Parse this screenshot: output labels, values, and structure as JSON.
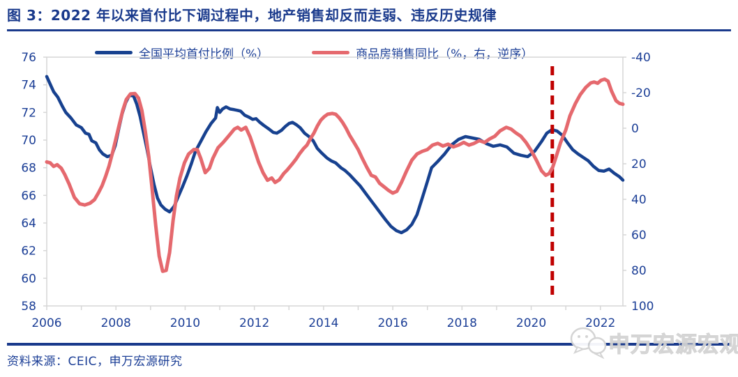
{
  "header": {
    "title": "图 3：2022 年以来首付比下调过程中，地产销售却反而走弱、违反历史规律"
  },
  "footer": {
    "source": "资料来源：CEIC，申万宏源研究",
    "watermark": "申万宏源宏观",
    "watermark_icon": "wechat-bubbles-icon"
  },
  "colors": {
    "title_navy": "#1a3a8c",
    "axis_text_blue": "#1b3e96",
    "series_downpayment_blue": "#17418f",
    "series_sales_red": "#e5696e",
    "dashed_marker_red": "#c00000",
    "plot_frame_gray": "#d6d6d6",
    "watermark_gray": "#dcdcdc"
  },
  "chart_data": {
    "type": "line",
    "title": "图 3：2022 年以来首付比下调过程中，地产销售却反而走弱、违反历史规律",
    "legend_position": "top",
    "grid": false,
    "x_axis": {
      "range": [
        2006,
        2022.65
      ],
      "minor_tick_years": [
        2006,
        2007,
        2008,
        2009,
        2010,
        2011,
        2012,
        2013,
        2014,
        2015,
        2016,
        2017,
        2018,
        2019,
        2020,
        2021,
        2022
      ],
      "tick_labels": [
        "2006",
        "2008",
        "2010",
        "2012",
        "2014",
        "2016",
        "2018",
        "2020",
        "2022"
      ],
      "tick_label_years": [
        2006,
        2008,
        2010,
        2012,
        2014,
        2016,
        2018,
        2020,
        2022
      ]
    },
    "y_left": {
      "range": [
        58,
        76
      ],
      "tick_labels": [
        "58",
        "60",
        "62",
        "64",
        "66",
        "68",
        "70",
        "72",
        "74",
        "76"
      ],
      "ticks": [
        58,
        60,
        62,
        64,
        66,
        68,
        70,
        72,
        74,
        76
      ]
    },
    "y_right": {
      "range": [
        -40,
        100
      ],
      "inverted": true,
      "tick_labels": [
        "-40",
        "-20",
        "0",
        "20",
        "40",
        "60",
        "80",
        "100"
      ],
      "ticks": [
        -40,
        -20,
        0,
        20,
        40,
        60,
        80,
        100
      ]
    },
    "annotation": {
      "type": "vline-dashed",
      "x": 2020.61,
      "color": "#c00000"
    },
    "series": [
      {
        "name": "全国平均首付比例（%）",
        "axis": "left",
        "color": "#17418f",
        "points": [
          [
            2006.0,
            74.6
          ],
          [
            2006.08,
            74.15
          ],
          [
            2006.2,
            73.5
          ],
          [
            2006.32,
            73.1
          ],
          [
            2006.45,
            72.45
          ],
          [
            2006.55,
            72.0
          ],
          [
            2006.7,
            71.6
          ],
          [
            2006.85,
            71.1
          ],
          [
            2007.0,
            70.9
          ],
          [
            2007.12,
            70.5
          ],
          [
            2007.22,
            70.42
          ],
          [
            2007.3,
            69.95
          ],
          [
            2007.42,
            69.8
          ],
          [
            2007.52,
            69.3
          ],
          [
            2007.62,
            69.0
          ],
          [
            2007.75,
            68.8
          ],
          [
            2007.88,
            68.9
          ],
          [
            2007.98,
            69.6
          ],
          [
            2008.08,
            70.8
          ],
          [
            2008.18,
            71.9
          ],
          [
            2008.28,
            72.7
          ],
          [
            2008.38,
            73.2
          ],
          [
            2008.5,
            73.25
          ],
          [
            2008.6,
            72.6
          ],
          [
            2008.7,
            71.7
          ],
          [
            2008.8,
            70.5
          ],
          [
            2008.9,
            69.3
          ],
          [
            2009.0,
            68.0
          ],
          [
            2009.1,
            66.8
          ],
          [
            2009.2,
            65.8
          ],
          [
            2009.3,
            65.3
          ],
          [
            2009.42,
            65.0
          ],
          [
            2009.55,
            64.8
          ],
          [
            2009.68,
            65.2
          ],
          [
            2009.8,
            65.9
          ],
          [
            2009.92,
            66.6
          ],
          [
            2010.05,
            67.4
          ],
          [
            2010.18,
            68.3
          ],
          [
            2010.3,
            69.2
          ],
          [
            2010.45,
            69.9
          ],
          [
            2010.6,
            70.6
          ],
          [
            2010.75,
            71.2
          ],
          [
            2010.88,
            71.6
          ],
          [
            2010.93,
            72.35
          ],
          [
            2011.0,
            72.0
          ],
          [
            2011.08,
            72.25
          ],
          [
            2011.18,
            72.4
          ],
          [
            2011.3,
            72.25
          ],
          [
            2011.42,
            72.2
          ],
          [
            2011.52,
            72.15
          ],
          [
            2011.6,
            72.1
          ],
          [
            2011.72,
            71.8
          ],
          [
            2011.85,
            71.65
          ],
          [
            2011.95,
            71.5
          ],
          [
            2012.05,
            71.55
          ],
          [
            2012.15,
            71.3
          ],
          [
            2012.28,
            71.05
          ],
          [
            2012.42,
            70.8
          ],
          [
            2012.55,
            70.55
          ],
          [
            2012.65,
            70.5
          ],
          [
            2012.78,
            70.7
          ],
          [
            2012.9,
            71.0
          ],
          [
            2013.0,
            71.2
          ],
          [
            2013.1,
            71.28
          ],
          [
            2013.22,
            71.1
          ],
          [
            2013.32,
            70.9
          ],
          [
            2013.45,
            70.5
          ],
          [
            2013.58,
            70.25
          ],
          [
            2013.7,
            69.95
          ],
          [
            2013.82,
            69.4
          ],
          [
            2013.95,
            69.05
          ],
          [
            2014.1,
            68.7
          ],
          [
            2014.22,
            68.5
          ],
          [
            2014.35,
            68.35
          ],
          [
            2014.5,
            68.0
          ],
          [
            2014.62,
            67.8
          ],
          [
            2014.75,
            67.5
          ],
          [
            2014.9,
            67.1
          ],
          [
            2015.05,
            66.7
          ],
          [
            2015.2,
            66.2
          ],
          [
            2015.35,
            65.7
          ],
          [
            2015.5,
            65.2
          ],
          [
            2015.65,
            64.7
          ],
          [
            2015.8,
            64.2
          ],
          [
            2015.95,
            63.75
          ],
          [
            2016.1,
            63.45
          ],
          [
            2016.25,
            63.3
          ],
          [
            2016.4,
            63.5
          ],
          [
            2016.55,
            63.9
          ],
          [
            2016.7,
            64.6
          ],
          [
            2016.85,
            65.8
          ],
          [
            2017.0,
            67.0
          ],
          [
            2017.12,
            68.0
          ],
          [
            2017.3,
            68.45
          ],
          [
            2017.5,
            69.0
          ],
          [
            2017.7,
            69.65
          ],
          [
            2017.9,
            70.05
          ],
          [
            2018.1,
            70.25
          ],
          [
            2018.3,
            70.15
          ],
          [
            2018.5,
            70.05
          ],
          [
            2018.7,
            69.75
          ],
          [
            2018.9,
            69.55
          ],
          [
            2019.1,
            69.65
          ],
          [
            2019.3,
            69.5
          ],
          [
            2019.5,
            69.05
          ],
          [
            2019.7,
            68.9
          ],
          [
            2019.9,
            68.8
          ],
          [
            2020.1,
            69.2
          ],
          [
            2020.3,
            69.9
          ],
          [
            2020.45,
            70.5
          ],
          [
            2020.6,
            70.75
          ],
          [
            2020.75,
            70.65
          ],
          [
            2020.9,
            70.35
          ],
          [
            2021.05,
            69.8
          ],
          [
            2021.2,
            69.3
          ],
          [
            2021.35,
            69.0
          ],
          [
            2021.5,
            68.75
          ],
          [
            2021.65,
            68.5
          ],
          [
            2021.8,
            68.1
          ],
          [
            2021.95,
            67.8
          ],
          [
            2022.1,
            67.75
          ],
          [
            2022.25,
            67.9
          ],
          [
            2022.4,
            67.6
          ],
          [
            2022.55,
            67.35
          ],
          [
            2022.65,
            67.1
          ]
        ]
      },
      {
        "name": "商品房销售同比（%，右，逆序）",
        "axis": "right",
        "color": "#e5696e",
        "points": [
          [
            2006.0,
            19.0
          ],
          [
            2006.1,
            19.5
          ],
          [
            2006.2,
            21.5
          ],
          [
            2006.3,
            20.5
          ],
          [
            2006.42,
            22.5
          ],
          [
            2006.52,
            26
          ],
          [
            2006.65,
            31.5
          ],
          [
            2006.8,
            39
          ],
          [
            2006.95,
            42.5
          ],
          [
            2007.1,
            43.2
          ],
          [
            2007.25,
            42.2
          ],
          [
            2007.38,
            40.2
          ],
          [
            2007.5,
            36.2
          ],
          [
            2007.6,
            32.3
          ],
          [
            2007.7,
            27.2
          ],
          [
            2007.8,
            21.3
          ],
          [
            2007.9,
            13.8
          ],
          [
            2008.0,
            5.9
          ],
          [
            2008.1,
            -2.4
          ],
          [
            2008.2,
            -10.2
          ],
          [
            2008.3,
            -16.2
          ],
          [
            2008.42,
            -19.3
          ],
          [
            2008.55,
            -19.5
          ],
          [
            2008.65,
            -17
          ],
          [
            2008.75,
            -10
          ],
          [
            2008.85,
            2
          ],
          [
            2008.95,
            16
          ],
          [
            2009.05,
            35
          ],
          [
            2009.15,
            55
          ],
          [
            2009.25,
            72
          ],
          [
            2009.35,
            80.5
          ],
          [
            2009.45,
            80
          ],
          [
            2009.55,
            70
          ],
          [
            2009.65,
            52
          ],
          [
            2009.75,
            38
          ],
          [
            2009.85,
            28
          ],
          [
            2009.98,
            19.5
          ],
          [
            2010.1,
            14.5
          ],
          [
            2010.25,
            12
          ],
          [
            2010.35,
            12
          ],
          [
            2010.45,
            17
          ],
          [
            2010.58,
            25
          ],
          [
            2010.7,
            22.5
          ],
          [
            2010.8,
            17
          ],
          [
            2010.95,
            11
          ],
          [
            2011.1,
            8
          ],
          [
            2011.25,
            4.5
          ],
          [
            2011.42,
            0.5
          ],
          [
            2011.52,
            -0.5
          ],
          [
            2011.62,
            1.0
          ],
          [
            2011.75,
            -0.5
          ],
          [
            2011.88,
            5
          ],
          [
            2012.0,
            12
          ],
          [
            2012.12,
            19
          ],
          [
            2012.25,
            25
          ],
          [
            2012.38,
            29.3
          ],
          [
            2012.5,
            28
          ],
          [
            2012.6,
            30.5
          ],
          [
            2012.72,
            29
          ],
          [
            2012.85,
            25.5
          ],
          [
            2012.95,
            23.5
          ],
          [
            2013.1,
            20
          ],
          [
            2013.2,
            17.5
          ],
          [
            2013.3,
            14.5
          ],
          [
            2013.42,
            11.5
          ],
          [
            2013.52,
            9.5
          ],
          [
            2013.62,
            5.9
          ],
          [
            2013.72,
            2.8
          ],
          [
            2013.82,
            -1.2
          ],
          [
            2013.92,
            -4.5
          ],
          [
            2014.02,
            -6.5
          ],
          [
            2014.12,
            -7.9
          ],
          [
            2014.25,
            -8.3
          ],
          [
            2014.35,
            -7.9
          ],
          [
            2014.45,
            -5.9
          ],
          [
            2014.55,
            -3.2
          ],
          [
            2014.65,
            0
          ],
          [
            2014.75,
            3.9
          ],
          [
            2014.88,
            8
          ],
          [
            2015.0,
            12
          ],
          [
            2015.12,
            17
          ],
          [
            2015.25,
            22
          ],
          [
            2015.38,
            26.5
          ],
          [
            2015.5,
            27.5
          ],
          [
            2015.62,
            31
          ],
          [
            2015.75,
            33
          ],
          [
            2015.88,
            35
          ],
          [
            2016.0,
            36.5
          ],
          [
            2016.12,
            35.5
          ],
          [
            2016.25,
            30.5
          ],
          [
            2016.4,
            24
          ],
          [
            2016.55,
            18
          ],
          [
            2016.7,
            14.5
          ],
          [
            2016.85,
            13
          ],
          [
            2017.0,
            12
          ],
          [
            2017.15,
            9.5
          ],
          [
            2017.3,
            8.5
          ],
          [
            2017.45,
            10
          ],
          [
            2017.6,
            9
          ],
          [
            2017.75,
            10.5
          ],
          [
            2017.9,
            9.5
          ],
          [
            2018.05,
            8
          ],
          [
            2018.2,
            9.5
          ],
          [
            2018.35,
            8.5
          ],
          [
            2018.5,
            7
          ],
          [
            2018.65,
            8
          ],
          [
            2018.8,
            6
          ],
          [
            2018.95,
            4.5
          ],
          [
            2019.1,
            1.5
          ],
          [
            2019.28,
            -0.5
          ],
          [
            2019.42,
            0.5
          ],
          [
            2019.55,
            2.5
          ],
          [
            2019.7,
            4.5
          ],
          [
            2019.85,
            8
          ],
          [
            2020.0,
            12.5
          ],
          [
            2020.15,
            18
          ],
          [
            2020.3,
            24
          ],
          [
            2020.42,
            26.5
          ],
          [
            2020.52,
            25.5
          ],
          [
            2020.62,
            22
          ],
          [
            2020.72,
            16
          ],
          [
            2020.85,
            8
          ],
          [
            2021.0,
            1
          ],
          [
            2021.12,
            -7
          ],
          [
            2021.28,
            -14
          ],
          [
            2021.42,
            -19
          ],
          [
            2021.58,
            -23
          ],
          [
            2021.72,
            -25.5
          ],
          [
            2021.82,
            -26
          ],
          [
            2021.92,
            -25.3
          ],
          [
            2022.02,
            -27
          ],
          [
            2022.12,
            -27.6
          ],
          [
            2022.22,
            -26.5
          ],
          [
            2022.32,
            -21
          ],
          [
            2022.45,
            -15.5
          ],
          [
            2022.55,
            -14
          ],
          [
            2022.65,
            -13.5
          ]
        ]
      }
    ]
  }
}
